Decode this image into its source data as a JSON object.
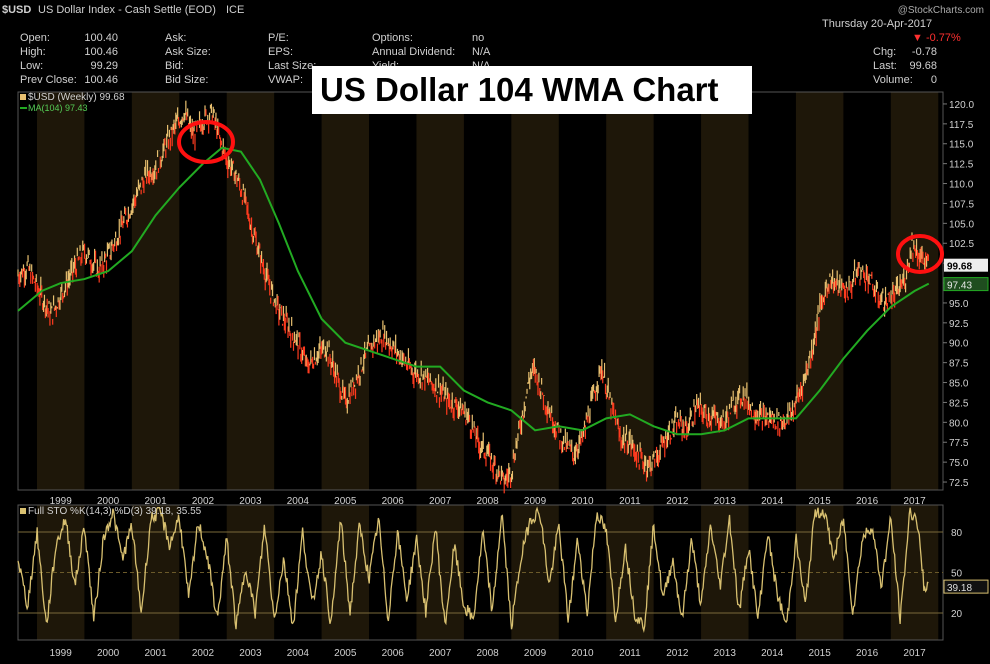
{
  "header": {
    "symbol": "$USD",
    "name": "US Dollar Index - Cash Settle (EOD)",
    "exchange": "ICE",
    "date": "Thursday  20-Apr-2017",
    "change_pct": "-0.77%",
    "watermark": "@StockCharts.com",
    "col1": [
      {
        "label": "Open:",
        "value": "100.40"
      },
      {
        "label": "High:",
        "value": "100.46"
      },
      {
        "label": "Low:",
        "value": "99.29"
      },
      {
        "label": "Prev Close:",
        "value": "100.46"
      }
    ],
    "col2": [
      "Ask:",
      "Ask Size:",
      "Bid:",
      "Bid Size:"
    ],
    "col3": [
      "P/E:",
      "EPS:",
      "Last Size:",
      "VWAP:"
    ],
    "col4": [
      {
        "label": "Options:",
        "value": "no"
      },
      {
        "label": "Annual Dividend:",
        "value": "N/A"
      },
      {
        "label": "Yield:",
        "value": "N/A"
      }
    ],
    "col5": [
      {
        "label": "Chg:",
        "value": "-0.78"
      },
      {
        "label": "Last:",
        "value": "99.68"
      },
      {
        "label": "Volume:",
        "value": "0"
      }
    ]
  },
  "banner": "US Dollar 104 WMA Chart",
  "legend": {
    "price": "$USD (Weekly) 99.68",
    "ma": "MA(104) 97.43",
    "sto": "Full STO %K(14,3) %D(3) 39.18, 35.55"
  },
  "colors": {
    "background": "#000000",
    "band": "#1e1709",
    "price_up": "#e8c070",
    "price_down": "#ff3b1f",
    "ma": "#22aa22",
    "sto": "#d8c070",
    "circle": "#ff1010"
  },
  "icons": [
    "red-circle-icon"
  ],
  "chart_data": [
    {
      "type": "line",
      "title": "",
      "ylabel": "",
      "ylim": [
        71.5,
        121.5
      ],
      "y_ticks": [
        72.5,
        75.0,
        77.5,
        80.0,
        82.5,
        85.0,
        87.5,
        90.0,
        92.5,
        95.0,
        97.5,
        100.0,
        102.5,
        105.0,
        107.5,
        110.0,
        112.5,
        115.0,
        117.5,
        120.0
      ],
      "x_ticks": [
        "1999",
        "2000",
        "2001",
        "2002",
        "2003",
        "2004",
        "2005",
        "2006",
        "2007",
        "2008",
        "2009",
        "2010",
        "2011",
        "2012",
        "2013",
        "2014",
        "2015",
        "2016",
        "2017"
      ],
      "x_range": [
        1998.1,
        2017.6
      ],
      "last_value_labels": {
        "price": "99.68",
        "ma": "97.43"
      },
      "series": [
        {
          "name": "$USD (Weekly) 99.68",
          "x": [
            1998.1,
            1998.3,
            1998.5,
            1998.8,
            1999.0,
            1999.3,
            1999.5,
            1999.8,
            2000.0,
            2000.2,
            2000.4,
            2000.6,
            2000.8,
            2001.0,
            2001.2,
            2001.4,
            2001.6,
            2001.8,
            2002.0,
            2002.2,
            2002.35,
            2002.5,
            2002.7,
            2002.9,
            2003.0,
            2003.2,
            2003.4,
            2003.6,
            2003.8,
            2004.0,
            2004.2,
            2004.4,
            2004.6,
            2004.8,
            2005.0,
            2005.2,
            2005.4,
            2005.6,
            2005.8,
            2006.0,
            2006.2,
            2006.4,
            2006.6,
            2006.8,
            2007.0,
            2007.2,
            2007.4,
            2007.6,
            2007.8,
            2008.0,
            2008.2,
            2008.35,
            2008.5,
            2008.7,
            2008.9,
            2009.0,
            2009.2,
            2009.4,
            2009.6,
            2009.8,
            2010.0,
            2010.2,
            2010.4,
            2010.6,
            2010.8,
            2011.0,
            2011.2,
            2011.4,
            2011.6,
            2011.8,
            2012.0,
            2012.2,
            2012.4,
            2012.6,
            2012.8,
            2013.0,
            2013.2,
            2013.4,
            2013.6,
            2013.8,
            2014.0,
            2014.2,
            2014.4,
            2014.6,
            2014.8,
            2015.0,
            2015.2,
            2015.4,
            2015.6,
            2015.8,
            2016.0,
            2016.2,
            2016.4,
            2016.6,
            2016.8,
            2016.95,
            2017.1,
            2017.3
          ],
          "values": [
            98.5,
            99.5,
            97.0,
            93.5,
            96.0,
            99.5,
            101.5,
            99.0,
            101.0,
            103.5,
            106.0,
            108.5,
            111.0,
            112.0,
            114.5,
            117.0,
            119.0,
            116.0,
            118.0,
            119.0,
            115.5,
            113.0,
            111.0,
            107.5,
            105.0,
            101.0,
            97.0,
            94.0,
            92.0,
            90.0,
            87.0,
            88.5,
            89.5,
            86.0,
            82.5,
            85.0,
            88.0,
            90.0,
            91.0,
            89.5,
            88.0,
            86.5,
            86.0,
            85.0,
            84.0,
            82.5,
            82.0,
            80.5,
            77.5,
            76.0,
            74.0,
            72.5,
            74.0,
            80.0,
            86.0,
            86.5,
            83.0,
            80.0,
            77.5,
            76.0,
            78.0,
            82.5,
            87.0,
            82.0,
            78.0,
            77.5,
            75.5,
            74.5,
            76.0,
            78.5,
            80.0,
            79.0,
            82.0,
            81.0,
            80.5,
            80.0,
            82.5,
            83.5,
            81.5,
            80.5,
            80.5,
            80.0,
            81.0,
            84.0,
            88.0,
            94.0,
            98.0,
            97.0,
            96.5,
            99.0,
            98.5,
            96.0,
            95.0,
            96.0,
            98.0,
            102.5,
            101.0,
            99.68
          ]
        },
        {
          "name": "MA(104) 97.43",
          "x": [
            1998.1,
            1998.6,
            1999.0,
            1999.5,
            2000.0,
            2000.5,
            2001.0,
            2001.5,
            2002.0,
            2002.4,
            2002.8,
            2003.2,
            2003.6,
            2004.0,
            2004.5,
            2005.0,
            2005.5,
            2006.0,
            2006.5,
            2007.0,
            2007.5,
            2008.0,
            2008.5,
            2009.0,
            2009.5,
            2010.0,
            2010.5,
            2011.0,
            2011.5,
            2012.0,
            2012.5,
            2013.0,
            2013.5,
            2014.0,
            2014.5,
            2015.0,
            2015.5,
            2016.0,
            2016.5,
            2017.0,
            2017.3
          ],
          "values": [
            94.0,
            96.5,
            97.5,
            98.0,
            99.0,
            101.5,
            106.0,
            109.5,
            112.5,
            114.5,
            114.0,
            110.5,
            105.0,
            99.0,
            93.0,
            90.0,
            89.0,
            88.0,
            87.0,
            87.0,
            84.0,
            82.5,
            81.5,
            79.0,
            79.5,
            79.0,
            80.5,
            81.0,
            79.5,
            78.5,
            78.5,
            79.0,
            80.5,
            80.5,
            80.5,
            84.0,
            88.0,
            91.5,
            94.5,
            96.5,
            97.43
          ]
        }
      ]
    },
    {
      "type": "line",
      "title": "",
      "ylim": [
        0,
        100
      ],
      "y_ticks": [
        20,
        50,
        80
      ],
      "x_ticks": [
        "1999",
        "2000",
        "2001",
        "2002",
        "2003",
        "2004",
        "2005",
        "2006",
        "2007",
        "2008",
        "2009",
        "2010",
        "2011",
        "2012",
        "2013",
        "2014",
        "2015",
        "2016",
        "2017"
      ],
      "last_value_labels": {
        "k": "39.18"
      },
      "series": [
        {
          "name": "Full STO %K(14,3) %D(3) 39.18, 35.55",
          "x": [
            1998.1,
            1998.3,
            1998.5,
            1998.7,
            1998.9,
            1999.1,
            1999.3,
            1999.5,
            1999.7,
            1999.9,
            2000.1,
            2000.3,
            2000.5,
            2000.7,
            2000.9,
            2001.1,
            2001.3,
            2001.5,
            2001.7,
            2001.9,
            2002.1,
            2002.3,
            2002.5,
            2002.7,
            2002.9,
            2003.1,
            2003.3,
            2003.5,
            2003.7,
            2003.9,
            2004.1,
            2004.3,
            2004.5,
            2004.7,
            2004.9,
            2005.1,
            2005.3,
            2005.5,
            2005.7,
            2005.9,
            2006.1,
            2006.3,
            2006.5,
            2006.7,
            2006.9,
            2007.1,
            2007.3,
            2007.5,
            2007.7,
            2007.9,
            2008.1,
            2008.3,
            2008.5,
            2008.7,
            2008.9,
            2009.1,
            2009.3,
            2009.5,
            2009.7,
            2009.9,
            2010.1,
            2010.3,
            2010.5,
            2010.7,
            2010.9,
            2011.1,
            2011.3,
            2011.5,
            2011.7,
            2011.9,
            2012.1,
            2012.3,
            2012.5,
            2012.7,
            2012.9,
            2013.1,
            2013.3,
            2013.5,
            2013.7,
            2013.9,
            2014.1,
            2014.3,
            2014.5,
            2014.7,
            2014.9,
            2015.1,
            2015.3,
            2015.5,
            2015.7,
            2015.9,
            2016.1,
            2016.3,
            2016.5,
            2016.7,
            2016.9,
            2017.05,
            2017.2,
            2017.3
          ],
          "values": [
            60,
            25,
            80,
            10,
            70,
            90,
            40,
            85,
            15,
            75,
            95,
            60,
            85,
            20,
            90,
            95,
            70,
            92,
            30,
            88,
            60,
            15,
            75,
            10,
            55,
            20,
            85,
            15,
            60,
            10,
            80,
            25,
            65,
            10,
            90,
            20,
            85,
            45,
            90,
            15,
            80,
            30,
            75,
            20,
            85,
            10,
            70,
            25,
            15,
            80,
            20,
            95,
            10,
            60,
            90,
            95,
            40,
            85,
            15,
            75,
            20,
            95,
            80,
            15,
            70,
            20,
            10,
            85,
            30,
            60,
            15,
            75,
            25,
            85,
            40,
            90,
            20,
            70,
            15,
            80,
            35,
            10,
            75,
            25,
            95,
            95,
            60,
            90,
            20,
            75,
            85,
            40,
            90,
            15,
            95,
            90,
            40,
            39.18
          ]
        }
      ]
    }
  ]
}
